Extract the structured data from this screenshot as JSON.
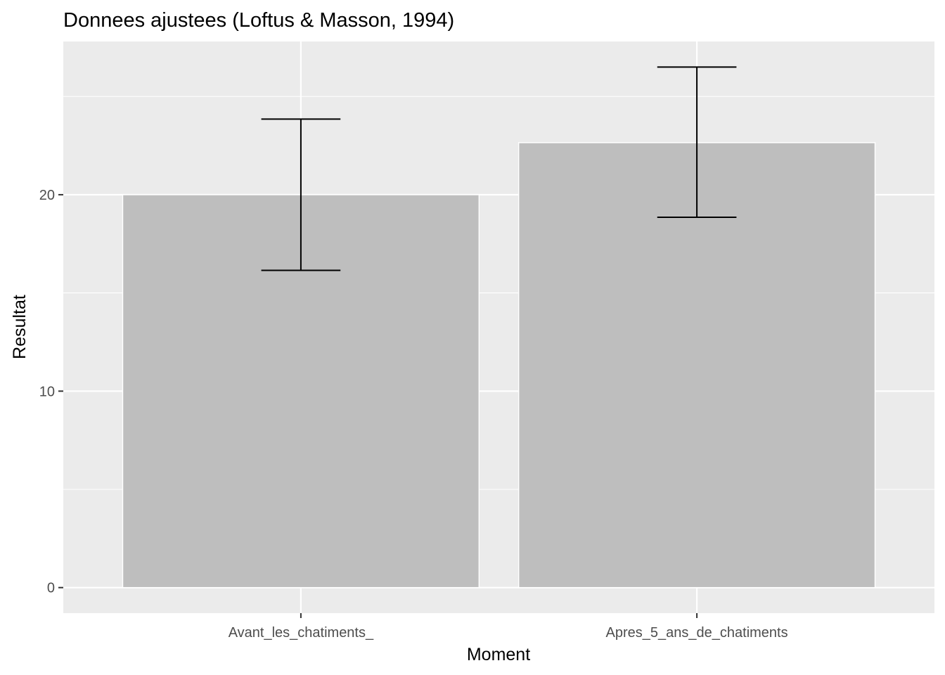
{
  "chart_data": {
    "type": "bar",
    "title": "Donnees ajustees (Loftus & Masson, 1994)",
    "xlabel": "Moment",
    "ylabel": "Resultat",
    "categories": [
      "Avant_les_chatiments_",
      "Apres_5_ans_de_chatiments"
    ],
    "values": [
      20.0,
      22.65
    ],
    "error_bars": [
      {
        "lower": 16.15,
        "upper": 23.85
      },
      {
        "lower": 18.85,
        "upper": 26.5
      }
    ],
    "y_ticks": [
      0,
      10,
      20
    ],
    "ylim": [
      -1.3,
      27.8
    ],
    "grid": true,
    "legend": "none",
    "colors": {
      "panel_background": "#ebebeb",
      "gridline": "#ffffff",
      "bar_fill": "#bebebe",
      "bar_outline": "#ffffff",
      "error_bar": "#000000",
      "tick_label": "#4d4d4d",
      "tick_mark": "#333333"
    }
  }
}
